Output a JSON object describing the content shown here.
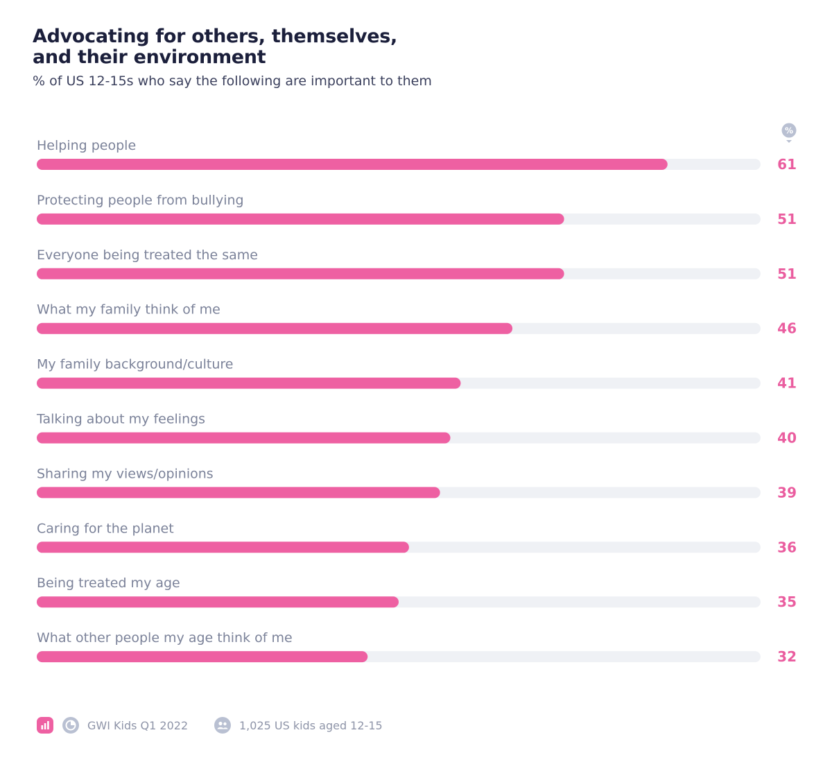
{
  "header": {
    "title_line1": "Advocating for others, themselves,",
    "title_line2": "and their environment",
    "subtitle": "% of US 12-15s who say the following are important to them",
    "unit_badge": "%"
  },
  "colors": {
    "bar": "#ee60a2",
    "track": "#eff1f5",
    "value": "#ea5d9f",
    "label": "#7b8299",
    "title": "#1b1f3b",
    "badge": "#b9c0d2",
    "footer_text": "#8e94a8"
  },
  "chart_data": {
    "type": "bar",
    "orientation": "horizontal",
    "categories": [
      "Helping people",
      "Protecting people from bullying",
      "Everyone being treated the same",
      "What my family think of me",
      "My family background/culture",
      "Talking about my feelings",
      "Sharing my views/opinions",
      "Caring for the planet",
      "Being treated my age",
      "What other people my age think of me"
    ],
    "values": [
      61,
      51,
      51,
      46,
      41,
      40,
      39,
      36,
      35,
      32
    ],
    "xlim": [
      0,
      70
    ],
    "grid": false,
    "legend": "none"
  },
  "footer": {
    "source_icons": [
      "bar-chart-icon",
      "pie-chart-icon"
    ],
    "source": "GWI Kids Q1 2022",
    "sample_icon": "people-icon",
    "sample": "1,025 US kids aged 12-15"
  }
}
